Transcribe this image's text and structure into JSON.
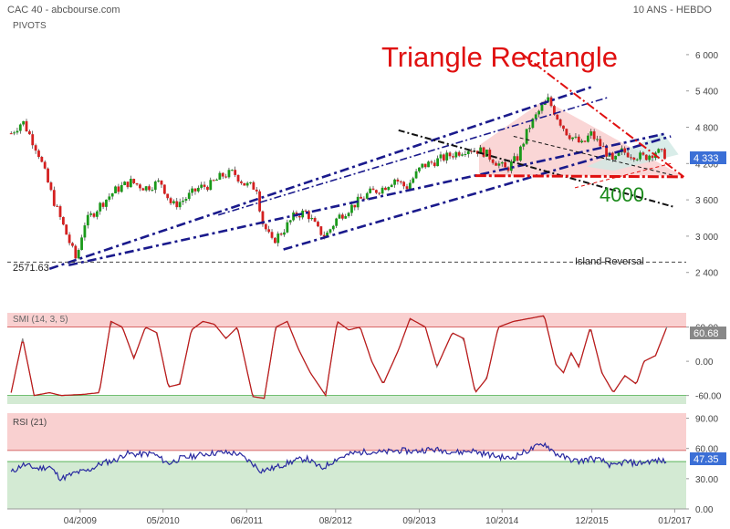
{
  "header": {
    "left_title": "CAC 40 - abcbourse.com",
    "left_sub": "PIVOTS",
    "right_title": "10 ANS - HEBDO"
  },
  "annotations": {
    "pattern_title": "Triangle Rectangle",
    "target": "4000",
    "support_label": "2571.63",
    "reversal": "Island Reversal"
  },
  "colors": {
    "up": "#1a9a1a",
    "down": "#d42020",
    "channel": "#1a1a8c",
    "pattern": "#e01010",
    "target": "#1a8a1a",
    "price_badge": "#3b6fd6",
    "smi_badge": "#888888",
    "rsi_badge": "#3b6fd6",
    "zone_red": "#f9d0d0",
    "zone_green": "#d3ead3"
  },
  "chart_data": [
    {
      "type": "candlestick",
      "title": "",
      "ylim": [
        2200,
        6300
      ],
      "yticks": [
        "6 000",
        "5 400",
        "4 800",
        "4 200",
        "3 600",
        "3 000",
        "2 400"
      ],
      "ytick_values": [
        6000,
        5400,
        4800,
        4200,
        3600,
        3000,
        2400
      ],
      "x_labels": [
        "04/2009",
        "05/2010",
        "06/2011",
        "08/2012",
        "09/2013",
        "10/2014",
        "12/2015",
        "01/2017"
      ],
      "x_range": [
        2008.3,
        2017.15
      ],
      "x_tick_values": [
        2009.25,
        2010.33,
        2011.42,
        2012.58,
        2013.67,
        2014.75,
        2015.92,
        2017.0
      ],
      "last_value": "4 333",
      "support_level": 2571.63,
      "path": [
        [
          2008.35,
          4700
        ],
        [
          2008.5,
          4900
        ],
        [
          2008.7,
          4400
        ],
        [
          2008.9,
          3600
        ],
        [
          2009.05,
          3100
        ],
        [
          2009.2,
          2600
        ],
        [
          2009.3,
          3200
        ],
        [
          2009.5,
          3500
        ],
        [
          2009.7,
          3750
        ],
        [
          2009.9,
          3900
        ],
        [
          2010.1,
          3800
        ],
        [
          2010.3,
          3900
        ],
        [
          2010.45,
          3500
        ],
        [
          2010.6,
          3600
        ],
        [
          2010.8,
          3800
        ],
        [
          2010.95,
          3850
        ],
        [
          2011.1,
          4000
        ],
        [
          2011.25,
          4050
        ],
        [
          2011.4,
          3850
        ],
        [
          2011.55,
          3800
        ],
        [
          2011.62,
          3250
        ],
        [
          2011.75,
          2900
        ],
        [
          2011.9,
          3100
        ],
        [
          2012.05,
          3350
        ],
        [
          2012.2,
          3400
        ],
        [
          2012.35,
          3100
        ],
        [
          2012.45,
          3000
        ],
        [
          2012.6,
          3300
        ],
        [
          2012.8,
          3500
        ],
        [
          2013.0,
          3700
        ],
        [
          2013.2,
          3800
        ],
        [
          2013.35,
          3950
        ],
        [
          2013.5,
          3800
        ],
        [
          2013.7,
          4150
        ],
        [
          2013.9,
          4250
        ],
        [
          2014.1,
          4350
        ],
        [
          2014.3,
          4450
        ],
        [
          2014.5,
          4400
        ],
        [
          2014.65,
          4250
        ],
        [
          2014.8,
          4100
        ],
        [
          2014.95,
          4300
        ],
        [
          2015.1,
          4800
        ],
        [
          2015.25,
          5100
        ],
        [
          2015.35,
          5250
        ],
        [
          2015.5,
          4900
        ],
        [
          2015.6,
          4700
        ],
        [
          2015.7,
          4600
        ],
        [
          2015.8,
          4500
        ],
        [
          2015.9,
          4700
        ],
        [
          2016.1,
          4400
        ],
        [
          2016.2,
          4200
        ],
        [
          2016.3,
          4400
        ],
        [
          2016.45,
          4350
        ],
        [
          2016.6,
          4300
        ],
        [
          2016.75,
          4400
        ],
        [
          2016.9,
          4330
        ]
      ]
    },
    {
      "type": "line",
      "title": "SMI (14, 3, 5)",
      "ylim": [
        -75,
        85
      ],
      "yticks": [
        "60.00",
        "0.00",
        "-60.00"
      ],
      "ytick_values": [
        60,
        0,
        -60
      ],
      "zones": {
        "upper": 60,
        "lower": -60
      },
      "last_value": "60.68",
      "path": [
        [
          2008.35,
          -55
        ],
        [
          2008.5,
          40
        ],
        [
          2008.65,
          -60
        ],
        [
          2008.85,
          -55
        ],
        [
          2009.0,
          -60
        ],
        [
          2009.3,
          -58
        ],
        [
          2009.5,
          -55
        ],
        [
          2009.65,
          70
        ],
        [
          2009.8,
          60
        ],
        [
          2009.95,
          5
        ],
        [
          2010.1,
          60
        ],
        [
          2010.25,
          50
        ],
        [
          2010.4,
          -45
        ],
        [
          2010.55,
          -40
        ],
        [
          2010.7,
          55
        ],
        [
          2010.85,
          70
        ],
        [
          2011.0,
          65
        ],
        [
          2011.15,
          40
        ],
        [
          2011.3,
          60
        ],
        [
          2011.5,
          -62
        ],
        [
          2011.65,
          -65
        ],
        [
          2011.8,
          60
        ],
        [
          2011.95,
          70
        ],
        [
          2012.1,
          20
        ],
        [
          2012.25,
          -20
        ],
        [
          2012.45,
          -60
        ],
        [
          2012.6,
          70
        ],
        [
          2012.75,
          55
        ],
        [
          2012.9,
          60
        ],
        [
          2013.05,
          0
        ],
        [
          2013.2,
          -40
        ],
        [
          2013.4,
          20
        ],
        [
          2013.55,
          75
        ],
        [
          2013.75,
          60
        ],
        [
          2013.9,
          -10
        ],
        [
          2014.1,
          50
        ],
        [
          2014.25,
          40
        ],
        [
          2014.4,
          -55
        ],
        [
          2014.55,
          -30
        ],
        [
          2014.7,
          60
        ],
        [
          2014.9,
          70
        ],
        [
          2015.1,
          75
        ],
        [
          2015.3,
          80
        ],
        [
          2015.45,
          -5
        ],
        [
          2015.55,
          -20
        ],
        [
          2015.65,
          15
        ],
        [
          2015.75,
          -10
        ],
        [
          2015.9,
          60
        ],
        [
          2016.05,
          -20
        ],
        [
          2016.2,
          -55
        ],
        [
          2016.35,
          -25
        ],
        [
          2016.5,
          -40
        ],
        [
          2016.6,
          0
        ],
        [
          2016.75,
          10
        ],
        [
          2016.9,
          61
        ]
      ]
    },
    {
      "type": "line",
      "title": "RSI (21)",
      "ylim": [
        0,
        95
      ],
      "yticks": [
        "90.00",
        "60.00",
        "30.00",
        "0.00"
      ],
      "ytick_values": [
        90,
        60,
        30,
        0
      ],
      "zones": {
        "upper": 58,
        "lower": 47
      },
      "last_value": "47.35",
      "path": [
        [
          2008.35,
          36
        ],
        [
          2008.5,
          44
        ],
        [
          2008.7,
          40
        ],
        [
          2008.85,
          42
        ],
        [
          2009.0,
          30
        ],
        [
          2009.2,
          36
        ],
        [
          2009.35,
          38
        ],
        [
          2009.55,
          46
        ],
        [
          2009.7,
          48
        ],
        [
          2009.85,
          55
        ],
        [
          2010.0,
          54
        ],
        [
          2010.2,
          55
        ],
        [
          2010.4,
          45
        ],
        [
          2010.55,
          50
        ],
        [
          2010.7,
          52
        ],
        [
          2010.9,
          55
        ],
        [
          2011.1,
          56
        ],
        [
          2011.3,
          55
        ],
        [
          2011.5,
          45
        ],
        [
          2011.6,
          38
        ],
        [
          2011.75,
          40
        ],
        [
          2011.9,
          44
        ],
        [
          2012.05,
          48
        ],
        [
          2012.2,
          50
        ],
        [
          2012.4,
          40
        ],
        [
          2012.6,
          50
        ],
        [
          2012.8,
          55
        ],
        [
          2013.0,
          57
        ],
        [
          2013.2,
          56
        ],
        [
          2013.4,
          58
        ],
        [
          2013.6,
          57
        ],
        [
          2013.8,
          59
        ],
        [
          2014.0,
          58
        ],
        [
          2014.2,
          56
        ],
        [
          2014.35,
          58
        ],
        [
          2014.5,
          55
        ],
        [
          2014.7,
          52
        ],
        [
          2014.85,
          50
        ],
        [
          2015.0,
          55
        ],
        [
          2015.15,
          60
        ],
        [
          2015.3,
          65
        ],
        [
          2015.45,
          55
        ],
        [
          2015.6,
          50
        ],
        [
          2015.75,
          47
        ],
        [
          2015.9,
          50
        ],
        [
          2016.05,
          48
        ],
        [
          2016.2,
          42
        ],
        [
          2016.35,
          47
        ],
        [
          2016.5,
          45
        ],
        [
          2016.65,
          47
        ],
        [
          2016.8,
          48
        ],
        [
          2016.9,
          47
        ]
      ]
    }
  ]
}
